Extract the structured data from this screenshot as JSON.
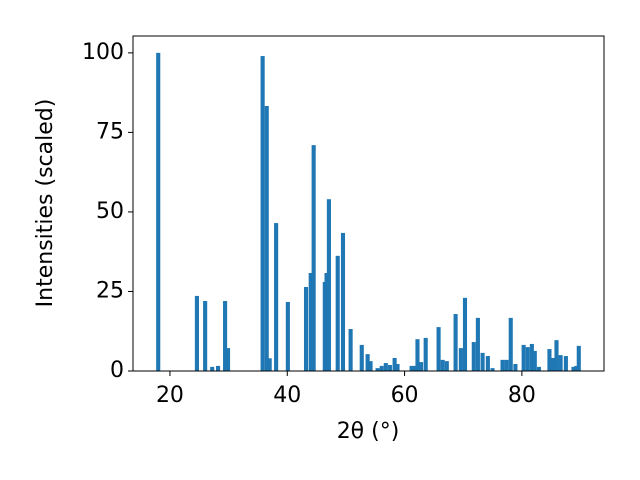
{
  "chart_data": {
    "type": "bar",
    "xlabel": "2θ (°)",
    "ylabel": "Intensities (scaled)",
    "color": "#1f77b4",
    "x": [
      18.0,
      24.6,
      26.0,
      27.2,
      28.2,
      29.4,
      29.9,
      35.8,
      36.5,
      37.0,
      38.1,
      40.1,
      43.2,
      44.0,
      44.5,
      46.4,
      46.7,
      47.1,
      48.6,
      49.5,
      50.8,
      52.7,
      53.7,
      54.2,
      55.4,
      56.1,
      56.8,
      57.5,
      58.3,
      58.8,
      61.2,
      61.7,
      62.2,
      62.8,
      63.6,
      65.8,
      66.5,
      67.2,
      68.7,
      69.6,
      70.3,
      71.8,
      72.5,
      73.3,
      74.2,
      75.0,
      76.7,
      77.4,
      78.1,
      78.9,
      80.3,
      81.0,
      81.7,
      82.2,
      82.9,
      84.7,
      85.4,
      85.9,
      86.6,
      87.5,
      88.8,
      89.3,
      89.7
    ],
    "values": [
      100,
      23.6,
      22.0,
      1.3,
      1.6,
      22.0,
      7.2,
      99,
      83.3,
      4.0,
      46.5,
      21.7,
      26.4,
      30.8,
      71,
      28,
      30.8,
      54,
      36.2,
      43.4,
      13.2,
      8.2,
      5.3,
      3.1,
      0.9,
      1.6,
      2.5,
      1.9,
      4.1,
      2.2,
      1.6,
      1.6,
      10.0,
      2.8,
      10.4,
      13.8,
      3.5,
      3.1,
      17.9,
      7.2,
      23.0,
      9.1,
      16.7,
      5.7,
      4.7,
      0.9,
      3.5,
      3.5,
      16.7,
      2.2,
      8.2,
      7.5,
      8.5,
      6.3,
      1.3,
      6.9,
      4.1,
      9.7,
      5.0,
      4.7,
      1.3,
      1.6,
      7.9
    ],
    "xlim": [
      13.7,
      94
    ],
    "ylim": [
      0,
      105.3
    ],
    "xticks": [
      20,
      40,
      60,
      80
    ],
    "yticks": [
      0,
      25,
      50,
      75,
      100
    ]
  }
}
